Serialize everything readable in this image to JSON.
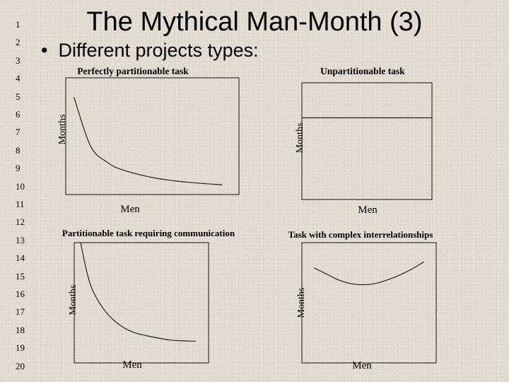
{
  "slide": {
    "title": "The Mythical Man-Month (3)",
    "bullet_text": "Different projects types:",
    "line_numbers": [
      "1",
      "2",
      "3",
      "4",
      "5",
      "6",
      "7",
      "8",
      "9",
      "10",
      "11",
      "12",
      "13",
      "14",
      "15",
      "16",
      "17",
      "18",
      "19",
      "20"
    ]
  },
  "chart_data": [
    {
      "type": "line",
      "title": "Perfectly partitionable task",
      "xlabel": "Men",
      "ylabel": "Months",
      "x": [
        1,
        2,
        3,
        4,
        6,
        8,
        10
      ],
      "series": [
        {
          "values": [
            10.0,
            5.0,
            3.33,
            2.5,
            1.67,
            1.25,
            1.0
          ]
        }
      ],
      "xlim": [
        0.5,
        11
      ],
      "ylim": [
        0,
        12
      ],
      "grid": false,
      "axis_ticks": false
    },
    {
      "type": "line",
      "title": "Unpartitionable task",
      "xlabel": "Men",
      "ylabel": "Months",
      "x": [
        0,
        10
      ],
      "series": [
        {
          "values": [
            7,
            7
          ]
        }
      ],
      "xlim": [
        0,
        10
      ],
      "ylim": [
        0,
        10
      ],
      "grid": false,
      "axis_ticks": false
    },
    {
      "type": "line",
      "title": "Partitionable task requiring communication",
      "xlabel": "Men",
      "ylabel": "Months",
      "x": [
        1,
        1.5,
        2,
        3,
        4,
        5,
        6,
        8,
        10
      ],
      "series": [
        {
          "values": [
            10.0,
            7.5,
            5.9,
            4.2,
            3.2,
            2.6,
            2.3,
            1.9,
            1.8
          ]
        }
      ],
      "xlim": [
        0.5,
        11
      ],
      "ylim": [
        0,
        10
      ],
      "grid": false,
      "axis_ticks": false
    },
    {
      "type": "line",
      "title": "Task with complex interrelationships",
      "xlabel": "Men",
      "ylabel": "Months",
      "x": [
        1,
        2,
        3,
        4,
        5,
        6,
        7,
        8,
        9,
        10
      ],
      "series": [
        {
          "values": [
            7.9,
            7.4,
            6.9,
            6.6,
            6.5,
            6.6,
            6.9,
            7.3,
            7.8,
            8.4
          ]
        }
      ],
      "xlim": [
        0,
        11
      ],
      "ylim": [
        0,
        10
      ],
      "grid": false,
      "axis_ticks": false
    }
  ],
  "colors": {
    "line": "#222222",
    "axis": "#111111",
    "background": "#e2dcd2"
  }
}
